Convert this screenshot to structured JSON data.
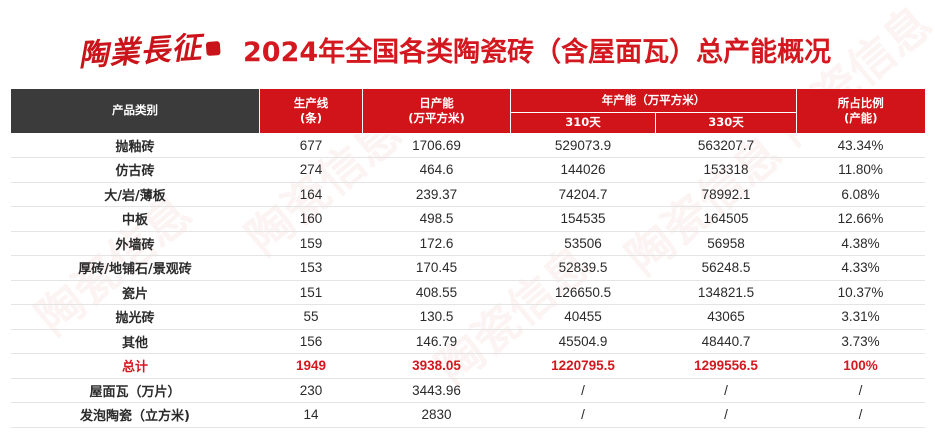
{
  "header": {
    "logo_text": "陶業長征",
    "title": "2024年全国各类陶瓷砖（含屋面瓦）总产能概况"
  },
  "watermark": "陶瓷信息",
  "colors": {
    "accent_red": "#d1131a",
    "header_dark": "#3b3b3b"
  },
  "table": {
    "headers": {
      "category": "产品类别",
      "lines": "生产线",
      "lines_unit": "(条)",
      "daily": "日产能",
      "daily_unit": "(万平方米)",
      "annual": "年产能（万平方米）",
      "d310": "310天",
      "d330": "330天",
      "share": "所占比例",
      "share_unit": "(产能)"
    },
    "rows": [
      {
        "category": "抛釉砖",
        "lines": "677",
        "daily": "1706.69",
        "d310": "529073.9",
        "d330": "563207.7",
        "share": "43.34%"
      },
      {
        "category": "仿古砖",
        "lines": "274",
        "daily": "464.6",
        "d310": "144026",
        "d330": "153318",
        "share": "11.80%"
      },
      {
        "category": "大/岩/薄板",
        "lines": "164",
        "daily": "239.37",
        "d310": "74204.7",
        "d330": "78992.1",
        "share": "6.08%"
      },
      {
        "category": "中板",
        "lines": "160",
        "daily": "498.5",
        "d310": "154535",
        "d330": "164505",
        "share": "12.66%"
      },
      {
        "category": "外墙砖",
        "lines": "159",
        "daily": "172.6",
        "d310": "53506",
        "d330": "56958",
        "share": "4.38%"
      },
      {
        "category": "厚砖/地铺石/景观砖",
        "lines": "153",
        "daily": "170.45",
        "d310": "52839.5",
        "d330": "56248.5",
        "share": "4.33%"
      },
      {
        "category": "瓷片",
        "lines": "151",
        "daily": "408.55",
        "d310": "126650.5",
        "d330": "134821.5",
        "share": "10.37%"
      },
      {
        "category": "抛光砖",
        "lines": "55",
        "daily": "130.5",
        "d310": "40455",
        "d330": "43065",
        "share": "3.31%"
      },
      {
        "category": "其他",
        "lines": "156",
        "daily": "146.79",
        "d310": "45504.9",
        "d330": "48440.7",
        "share": "3.73%"
      },
      {
        "category": "总计",
        "lines": "1949",
        "daily": "3938.05",
        "d310": "1220795.5",
        "d330": "1299556.5",
        "share": "100%"
      },
      {
        "category": "屋面瓦（万片）",
        "lines": "230",
        "daily": "3443.96",
        "d310": "/",
        "d330": "/",
        "share": "/"
      },
      {
        "category": "发泡陶瓷（立方米)",
        "lines": "14",
        "daily": "2830",
        "d310": "/",
        "d330": "/",
        "share": "/"
      }
    ]
  }
}
